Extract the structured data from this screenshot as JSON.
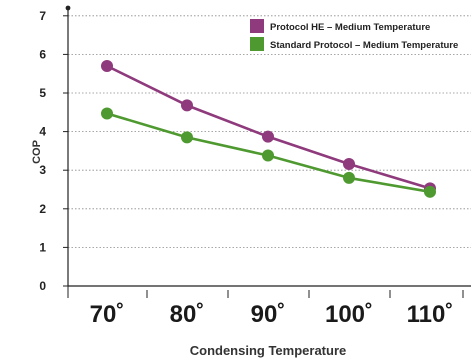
{
  "chart_data": {
    "type": "line",
    "xlabel": "Condensing Temperature",
    "ylabel": "COP",
    "categories": [
      "70˚",
      "80˚",
      "90˚",
      "100˚",
      "110˚"
    ],
    "ylim": [
      0,
      7
    ],
    "yticks": [
      "0",
      "1",
      "2",
      "3",
      "4",
      "5",
      "6",
      "7"
    ],
    "grid": true,
    "legend_position": "top-right",
    "series": [
      {
        "name": "Protocol HE – Medium Temperature",
        "color": "#8e3a7c",
        "values": [
          5.7,
          4.68,
          3.87,
          3.16,
          2.53
        ]
      },
      {
        "name": "Standard Protocol – Medium Temperature",
        "color": "#4f9a30",
        "values": [
          4.47,
          3.85,
          3.38,
          2.8,
          2.44
        ]
      }
    ]
  }
}
